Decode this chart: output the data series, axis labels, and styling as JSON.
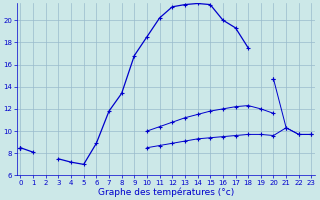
{
  "xlabel": "Graphe des températures (°c)",
  "bg_color": "#cce8e8",
  "line_color": "#0000cc",
  "grid_color": "#99bbcc",
  "hours": [
    0,
    1,
    2,
    3,
    4,
    5,
    6,
    7,
    8,
    9,
    10,
    11,
    12,
    13,
    14,
    15,
    16,
    17,
    18,
    19,
    20,
    21,
    22,
    23
  ],
  "temp_main": [
    8.5,
    8.1,
    null,
    7.5,
    7.2,
    7.0,
    8.9,
    11.8,
    13.4,
    16.8,
    18.5,
    20.2,
    21.2,
    21.4,
    21.5,
    21.4,
    20.0,
    19.3,
    17.5,
    null,
    14.7,
    null,
    null,
    null
  ],
  "temp_diag": [
    8.5,
    null,
    null,
    null,
    null,
    null,
    null,
    null,
    null,
    null,
    null,
    null,
    null,
    null,
    null,
    null,
    null,
    null,
    null,
    null,
    14.7,
    10.3,
    9.7,
    9.7
  ],
  "temp_mid": [
    8.5,
    null,
    null,
    null,
    null,
    null,
    null,
    null,
    null,
    null,
    10.0,
    10.4,
    10.8,
    11.2,
    11.5,
    11.8,
    12.0,
    12.2,
    12.3,
    12.0,
    11.6,
    null,
    null,
    null
  ],
  "temp_low": [
    8.5,
    null,
    null,
    null,
    null,
    null,
    null,
    null,
    null,
    null,
    8.5,
    8.7,
    8.9,
    9.1,
    9.3,
    9.4,
    9.5,
    9.6,
    9.7,
    9.7,
    9.6,
    10.3,
    9.7,
    9.7
  ],
  "xlim": [
    -0.3,
    23.3
  ],
  "ylim": [
    6.0,
    21.5
  ],
  "yticks": [
    6,
    8,
    10,
    12,
    14,
    16,
    18,
    20
  ],
  "xticks": [
    0,
    1,
    2,
    3,
    4,
    5,
    6,
    7,
    8,
    9,
    10,
    11,
    12,
    13,
    14,
    15,
    16,
    17,
    18,
    19,
    20,
    21,
    22,
    23
  ],
  "xlabel_fontsize": 6.5,
  "tick_fontsize": 5.0
}
